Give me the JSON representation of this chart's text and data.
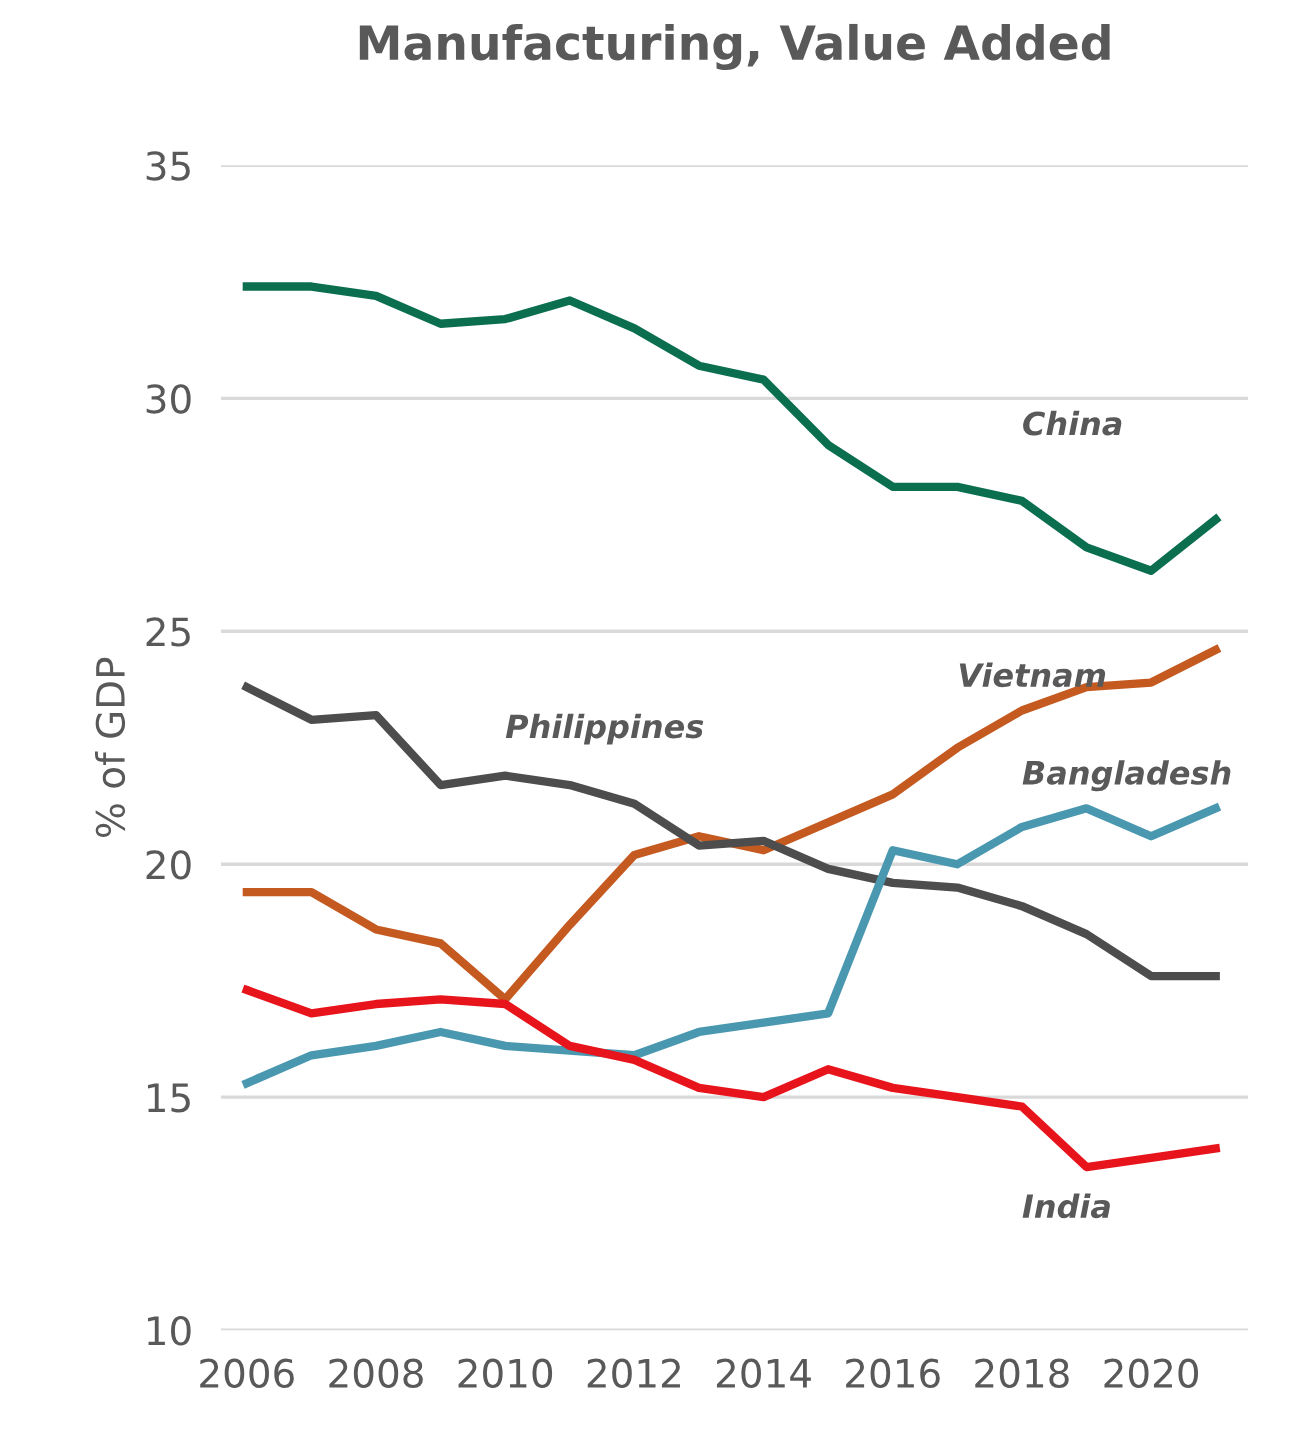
{
  "chart_data": {
    "type": "line",
    "title": "Manufacturing, Value Added",
    "ylabel": "% of GDP",
    "x": [
      2006,
      2007,
      2008,
      2009,
      2010,
      2011,
      2012,
      2013,
      2014,
      2015,
      2016,
      2017,
      2018,
      2019,
      2020,
      2021
    ],
    "series": [
      {
        "name": "China",
        "color": "#0a6e4f",
        "values": [
          32.4,
          32.4,
          32.2,
          31.6,
          31.7,
          32.1,
          31.5,
          30.7,
          30.4,
          29.0,
          28.1,
          28.1,
          27.8,
          26.8,
          26.3,
          27.4
        ]
      },
      {
        "name": "Vietnam",
        "color": "#c55a21",
        "values": [
          19.4,
          19.4,
          18.6,
          18.3,
          17.1,
          18.7,
          20.2,
          20.6,
          20.3,
          20.9,
          21.5,
          22.5,
          23.3,
          23.8,
          23.9,
          24.6
        ]
      },
      {
        "name": "Philippines",
        "color": "#4d4d4d",
        "values": [
          23.8,
          23.1,
          23.2,
          21.7,
          21.9,
          21.7,
          21.3,
          20.4,
          20.5,
          19.9,
          19.6,
          19.5,
          19.1,
          18.5,
          17.6,
          17.6
        ]
      },
      {
        "name": "Bangladesh",
        "color": "#4a98b0",
        "values": [
          15.3,
          15.9,
          16.1,
          16.4,
          16.1,
          16.0,
          15.9,
          16.4,
          16.6,
          16.8,
          20.3,
          20.0,
          20.8,
          21.2,
          20.6,
          21.2
        ]
      },
      {
        "name": "India",
        "color": "#e8141c",
        "values": [
          17.3,
          16.8,
          17.0,
          17.1,
          17.0,
          16.1,
          15.8,
          15.2,
          15.0,
          15.6,
          15.2,
          15.0,
          14.8,
          13.5,
          13.7,
          13.9
        ]
      }
    ],
    "xlim": [
      2005.6,
      2021.5
    ],
    "xticks": [
      2006,
      2008,
      2010,
      2012,
      2014,
      2016,
      2018,
      2020
    ],
    "ylim": [
      10,
      35
    ],
    "yticks": [
      10,
      15,
      20,
      25,
      30,
      35
    ],
    "grid": "y",
    "legend": false,
    "marker": "none",
    "line_style": "solid"
  }
}
